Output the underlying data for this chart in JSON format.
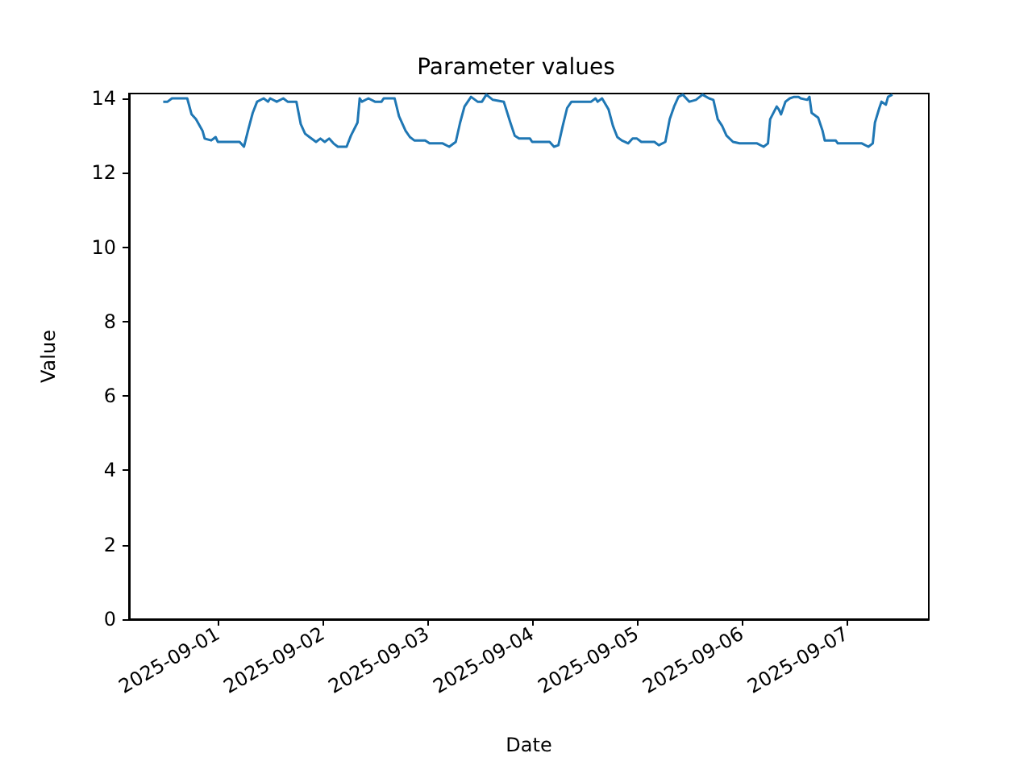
{
  "chart_data": {
    "type": "line",
    "title": "Parameter values",
    "xlabel": "Date",
    "ylabel": "Value",
    "x": [
      "2025-08-31T11:30",
      "2025-08-31T12:30",
      "2025-08-31T13:30",
      "2025-08-31T17:00",
      "2025-08-31T18:00",
      "2025-08-31T19:00",
      "2025-08-31T20:30",
      "2025-08-31T21:00",
      "2025-08-31T22:30",
      "2025-08-31T23:30",
      "2025-09-01T00:00",
      "2025-09-01T01:00",
      "2025-09-01T05:00",
      "2025-09-01T06:00",
      "2025-09-01T07:00",
      "2025-09-01T08:00",
      "2025-09-01T09:00",
      "2025-09-01T10:30",
      "2025-09-01T11:30",
      "2025-09-01T12:00",
      "2025-09-01T13:30",
      "2025-09-01T15:00",
      "2025-09-01T16:00",
      "2025-09-01T18:00",
      "2025-09-01T19:00",
      "2025-09-01T20:00",
      "2025-09-01T21:00",
      "2025-09-01T22:30",
      "2025-09-01T23:30",
      "2025-09-02T00:30",
      "2025-09-02T01:30",
      "2025-09-02T02:30",
      "2025-09-02T03:30",
      "2025-09-02T05:30",
      "2025-09-02T06:30",
      "2025-09-02T08:00",
      "2025-09-02T08:30",
      "2025-09-02T09:00",
      "2025-09-02T10:30",
      "2025-09-02T12:00",
      "2025-09-02T13:30",
      "2025-09-02T14:00",
      "2025-09-02T16:30",
      "2025-09-02T17:30",
      "2025-09-02T19:00",
      "2025-09-02T20:00",
      "2025-09-02T21:00",
      "2025-09-02T23:30",
      "2025-09-03T00:30",
      "2025-09-03T03:30",
      "2025-09-03T05:00",
      "2025-09-03T06:30",
      "2025-09-03T07:30",
      "2025-09-03T08:30",
      "2025-09-03T10:00",
      "2025-09-03T11:30",
      "2025-09-03T12:30",
      "2025-09-03T13:30",
      "2025-09-03T15:00",
      "2025-09-03T17:30",
      "2025-09-03T19:00",
      "2025-09-03T20:00",
      "2025-09-03T21:00",
      "2025-09-03T23:30",
      "2025-09-04T00:00",
      "2025-09-04T04:00",
      "2025-09-04T05:00",
      "2025-09-04T06:00",
      "2025-09-04T07:00",
      "2025-09-04T08:00",
      "2025-09-04T09:00",
      "2025-09-04T13:30",
      "2025-09-04T14:30",
      "2025-09-04T15:00",
      "2025-09-04T16:00",
      "2025-09-04T17:30",
      "2025-09-04T18:30",
      "2025-09-04T19:30",
      "2025-09-04T20:30",
      "2025-09-04T22:00",
      "2025-09-04T23:00",
      "2025-09-05T00:00",
      "2025-09-05T01:00",
      "2025-09-05T04:00",
      "2025-09-05T05:00",
      "2025-09-05T06:30",
      "2025-09-05T07:30",
      "2025-09-05T08:30",
      "2025-09-05T09:30",
      "2025-09-05T10:30",
      "2025-09-05T12:00",
      "2025-09-05T13:30",
      "2025-09-05T15:00",
      "2025-09-05T16:30",
      "2025-09-05T17:30",
      "2025-09-05T18:30",
      "2025-09-05T19:30",
      "2025-09-05T20:30",
      "2025-09-05T22:00",
      "2025-09-05T23:30",
      "2025-09-06T03:30",
      "2025-09-06T05:00",
      "2025-09-06T06:00",
      "2025-09-06T06:30",
      "2025-09-06T08:00",
      "2025-09-06T08:30",
      "2025-09-06T09:00",
      "2025-09-06T10:00",
      "2025-09-06T11:00",
      "2025-09-06T12:00",
      "2025-09-06T13:00",
      "2025-09-06T13:30",
      "2025-09-06T15:00",
      "2025-09-06T15:30",
      "2025-09-06T16:00",
      "2025-09-06T17:30",
      "2025-09-06T18:30",
      "2025-09-06T19:00",
      "2025-09-06T20:30",
      "2025-09-06T21:30",
      "2025-09-06T22:00",
      "2025-09-07T03:30",
      "2025-09-07T05:00",
      "2025-09-07T06:00",
      "2025-09-07T06:30",
      "2025-09-07T07:30",
      "2025-09-07T08:00",
      "2025-09-07T09:00",
      "2025-09-07T09:30",
      "2025-09-07T10:30"
    ],
    "series": [
      {
        "color": "#1f77b4",
        "values": [
          13.91,
          13.91,
          14.0,
          14.0,
          13.57,
          13.44,
          13.13,
          12.92,
          12.87,
          12.96,
          12.83,
          12.83,
          12.83,
          12.7,
          13.17,
          13.61,
          13.91,
          14.0,
          13.91,
          14.0,
          13.91,
          14.0,
          13.91,
          13.91,
          13.31,
          13.05,
          12.96,
          12.83,
          12.92,
          12.83,
          12.92,
          12.79,
          12.7,
          12.7,
          13.0,
          13.35,
          14.0,
          13.91,
          14.0,
          13.91,
          13.91,
          14.0,
          14.0,
          13.52,
          13.13,
          12.96,
          12.87,
          12.87,
          12.79,
          12.79,
          12.7,
          12.83,
          13.35,
          13.78,
          14.04,
          13.91,
          13.91,
          14.1,
          13.96,
          13.91,
          13.35,
          13.0,
          12.92,
          12.92,
          12.83,
          12.83,
          12.7,
          12.74,
          13.26,
          13.74,
          13.91,
          13.91,
          14.0,
          13.91,
          14.0,
          13.7,
          13.26,
          12.96,
          12.87,
          12.79,
          12.92,
          12.92,
          12.83,
          12.83,
          12.74,
          12.83,
          13.44,
          13.78,
          14.04,
          14.1,
          13.91,
          13.96,
          14.1,
          14.0,
          13.96,
          13.44,
          13.26,
          13.0,
          12.83,
          12.79,
          12.79,
          12.7,
          12.79,
          13.44,
          13.78,
          13.7,
          13.57,
          13.91,
          14.0,
          14.04,
          14.04,
          14.0,
          13.96,
          14.04,
          13.61,
          13.48,
          13.13,
          12.87,
          12.87,
          12.87,
          12.79,
          12.79,
          12.7,
          12.79,
          13.35,
          13.74,
          13.91,
          13.83,
          14.04,
          14.1
        ]
      }
    ],
    "xlim": [
      "2025-08-31T03:40",
      "2025-09-07T18:50"
    ],
    "xticks": [
      "2025-09-01",
      "2025-09-02",
      "2025-09-03",
      "2025-09-04",
      "2025-09-05",
      "2025-09-06",
      "2025-09-07"
    ],
    "ylim": [
      0,
      14.13
    ],
    "yticks": [
      0,
      2,
      4,
      6,
      8,
      10,
      12,
      14
    ]
  }
}
